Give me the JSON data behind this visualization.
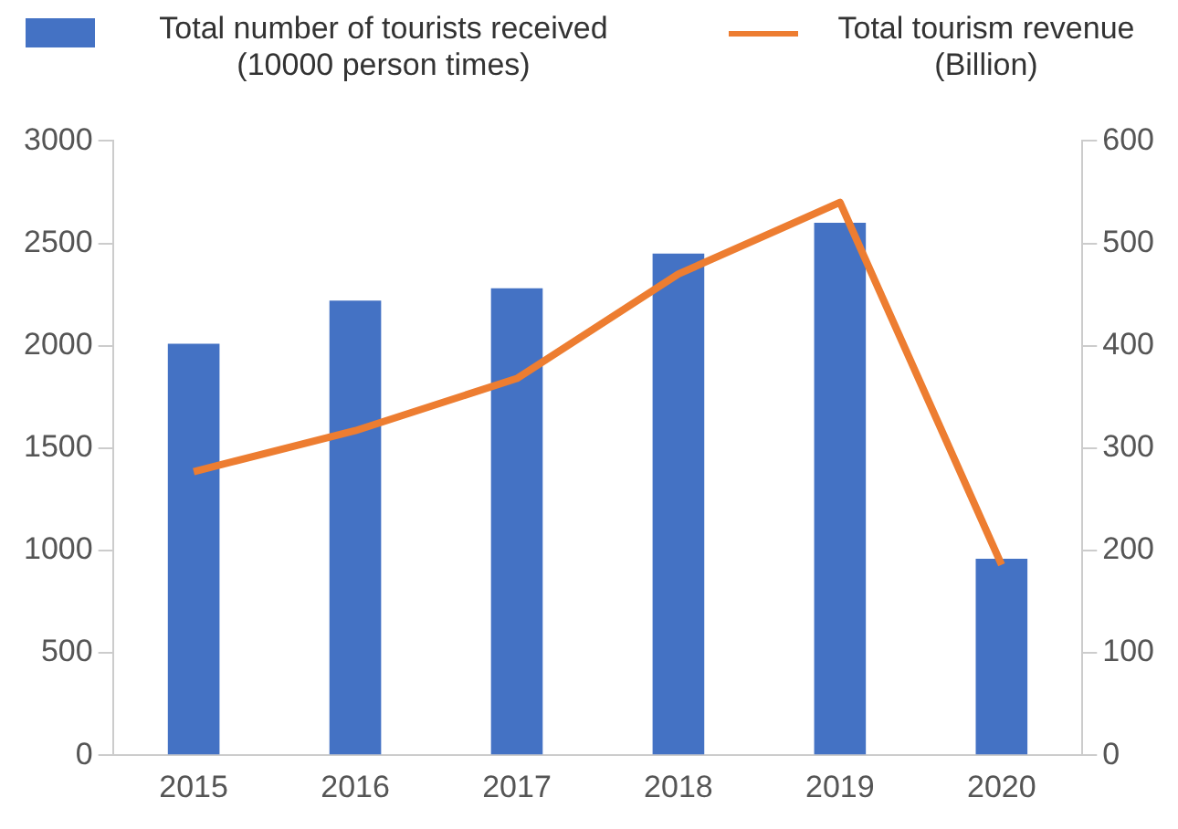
{
  "chart_data": {
    "type": "bar",
    "categories": [
      "2015",
      "2016",
      "2017",
      "2018",
      "2019",
      "2020"
    ],
    "series": [
      {
        "name": "Total number of tourists received (10000 person times)",
        "color": "#4472c4",
        "values": [
          2010,
          2220,
          2280,
          2450,
          2600,
          960
        ]
      },
      {
        "name": "Total tourism revenue (Billion)",
        "type": "line",
        "axis": "y2",
        "color": "#ed7d31",
        "values": [
          277,
          317,
          368,
          470,
          540,
          186
        ]
      }
    ],
    "ylim": [
      0,
      3000
    ],
    "yticks": [
      0,
      500,
      1000,
      1500,
      2000,
      2500,
      3000
    ],
    "y2lim": [
      0,
      600
    ],
    "y2ticks": [
      0,
      100,
      200,
      300,
      400,
      500,
      600
    ],
    "grid": false,
    "legend": "top",
    "marker": "none"
  }
}
